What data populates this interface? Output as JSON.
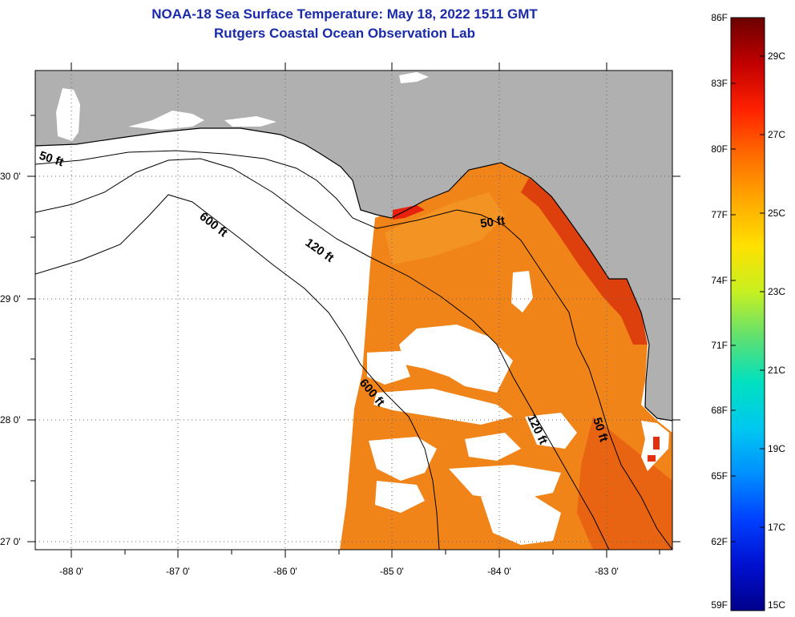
{
  "header": {
    "title": "NOAA-18 Sea Surface Temperature:  May 18, 2022 1511 GMT",
    "subtitle": "Rutgers Coastal Ocean Observation Lab"
  },
  "map": {
    "lat_labels": [
      "30 0'",
      "29 0'",
      "28 0'",
      "27 0'"
    ],
    "lon_labels": [
      "-88 0'",
      "-87 0'",
      "-86 0'",
      "-85 0'",
      "-84 0'",
      "-83 0'"
    ],
    "contour_labels": [
      "50 ft",
      "600 ft",
      "120 ft",
      "50 ft",
      "600 ft",
      "120 ft",
      "50 ft"
    ],
    "colors": {
      "land": "#b0b0b0",
      "sst_warm": "#f08418",
      "sst_hot": "#d61a08",
      "missing": "#ffffff"
    }
  },
  "colorbar": {
    "fahrenheit": [
      "86F",
      "83F",
      "80F",
      "77F",
      "74F",
      "71F",
      "68F",
      "65F",
      "62F",
      "59F"
    ],
    "celsius": [
      "29C",
      "27C",
      "25C",
      "23C",
      "21C",
      "19C",
      "17C",
      "15C"
    ],
    "gradient": [
      "#6b0000",
      "#c00000",
      "#ff2000",
      "#ff6a00",
      "#ffa800",
      "#ffe000",
      "#c8f020",
      "#60e070",
      "#00e0c0",
      "#00c8f0",
      "#0090ff",
      "#0040ff",
      "#0010d0",
      "#00008a"
    ]
  }
}
